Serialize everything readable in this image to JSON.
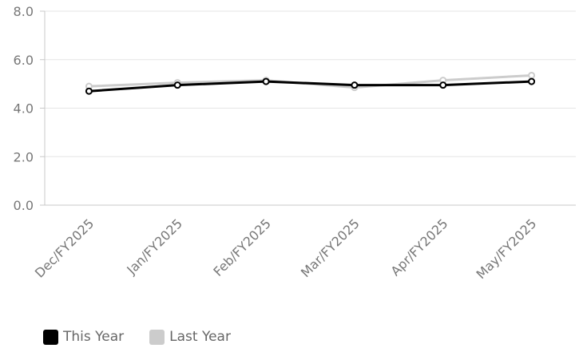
{
  "chart_data": {
    "type": "line",
    "categories": [
      "Dec/FY2025",
      "Jan/FY2025",
      "Feb/FY2025",
      "Mar/FY2025",
      "Apr/FY2025",
      "May/FY2025"
    ],
    "series": [
      {
        "name": "This Year",
        "color": "#000000",
        "values": [
          4.7,
          4.95,
          5.1,
          4.95,
          4.95,
          5.1
        ]
      },
      {
        "name": "Last Year",
        "color": "#cccccc",
        "values": [
          4.9,
          5.05,
          5.15,
          4.85,
          5.15,
          5.35
        ]
      }
    ],
    "y_ticks": [
      "0.0",
      "2.0",
      "4.0",
      "6.0",
      "8.0"
    ],
    "ylim": [
      0,
      8
    ],
    "grid": true,
    "legend_position": "bottom-left"
  }
}
